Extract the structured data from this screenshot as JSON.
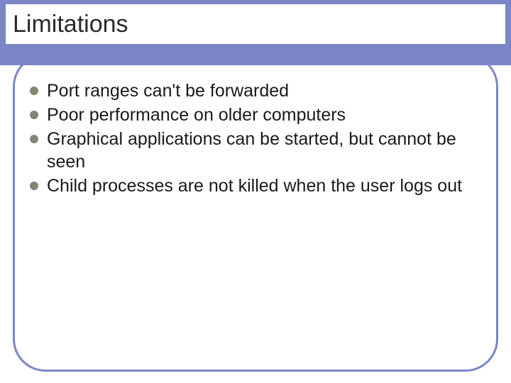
{
  "slide": {
    "title": "Limitations",
    "bullets": [
      "Port ranges can't be forwarded",
      "Poor performance on older computers",
      "Graphical applications can be started, but cannot be seen",
      "Child processes are not killed when the user logs out"
    ]
  },
  "style": {
    "header_band_color": "#7b86c6",
    "frame_border_color": "#7b86c6",
    "frame_border_width": 3,
    "frame_border_radius": 46,
    "bullet_color": "#84876f",
    "bullet_size": 12,
    "title_fontsize": 34,
    "title_color": "#2a2a2a",
    "body_fontsize": 25,
    "body_color": "#1a1a1a",
    "background": "#ffffff"
  }
}
